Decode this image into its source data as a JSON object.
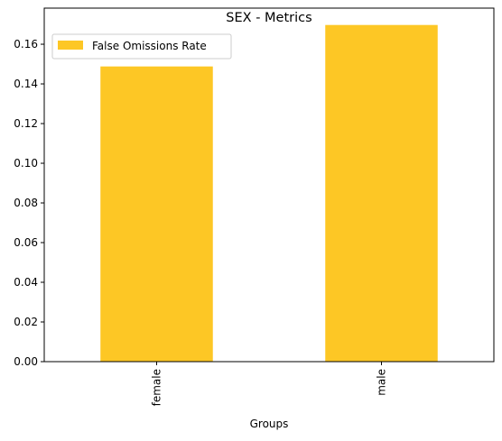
{
  "chart_data": {
    "type": "bar",
    "title": "SEX - Metrics",
    "xlabel": "Groups",
    "ylabel": "",
    "categories": [
      "female",
      "male"
    ],
    "series": [
      {
        "name": "False Omissions Rate",
        "values": [
          0.1488,
          0.1697
        ],
        "color": "#fdc725"
      }
    ],
    "ylim": [
      0,
      0.1782
    ],
    "yticks": [
      0.0,
      0.02,
      0.04,
      0.06,
      0.08,
      0.1,
      0.12,
      0.14,
      0.16
    ],
    "ytick_labels": [
      "0.00",
      "0.02",
      "0.04",
      "0.06",
      "0.08",
      "0.10",
      "0.12",
      "0.14",
      "0.16"
    ],
    "grid": false,
    "legend_position": "top-left",
    "xtick_rotation": "vertical"
  }
}
